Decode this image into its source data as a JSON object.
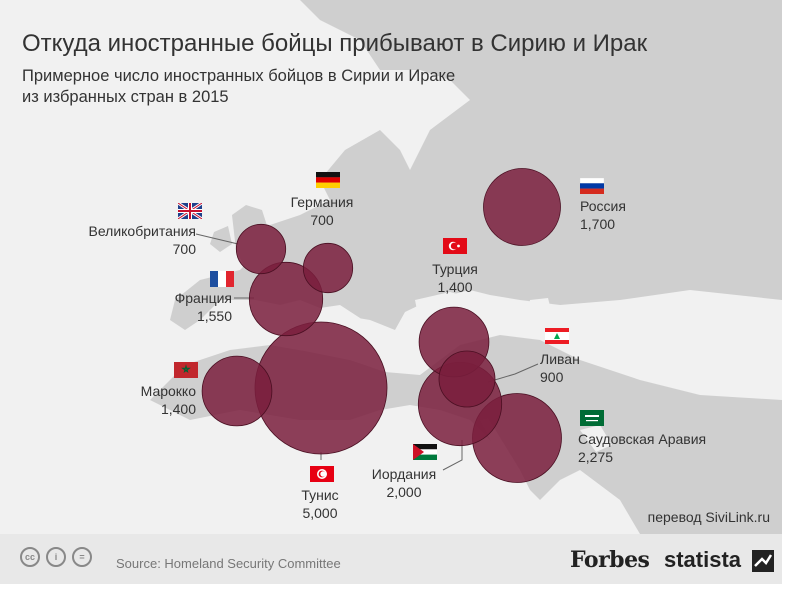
{
  "chart_data": {
    "type": "bubble-map",
    "title": "Откуда иностранные бойцы прибывают в Сирию и Ирак",
    "subtitle_lines": [
      "Примерное число иностранных бойцов в Сирии и Ираке",
      "из избранных стран в 2015"
    ],
    "points": [
      {
        "country": "Великобритания",
        "value_label": "700",
        "value": 700,
        "flag": "uk-flag-icon"
      },
      {
        "country": "Германия",
        "value_label": "700",
        "value": 700,
        "flag": "germany-flag-icon"
      },
      {
        "country": "Франция",
        "value_label": "1,550",
        "value": 1550,
        "flag": "france-flag-icon"
      },
      {
        "country": "Марокко",
        "value_label": "1,400",
        "value": 1400,
        "flag": "morocco-flag-icon"
      },
      {
        "country": "Тунис",
        "value_label": "5,000",
        "value": 5000,
        "flag": "tunisia-flag-icon"
      },
      {
        "country": "Турция",
        "value_label": "1,400",
        "value": 1400,
        "flag": "turkey-flag-icon"
      },
      {
        "country": "Ливан",
        "value_label": "900",
        "value": 900,
        "flag": "lebanon-flag-icon"
      },
      {
        "country": "Иордания",
        "value_label": "2,000",
        "value": 2000,
        "flag": "jordan-flag-icon"
      },
      {
        "country": "Саудовская Аравия",
        "value_label": "2,275",
        "value": 2275,
        "flag": "saudi-arabia-flag-icon"
      },
      {
        "country": "Россия",
        "value_label": "1,700",
        "value": 1700,
        "flag": "russia-flag-icon"
      }
    ],
    "bubble_color": "#7a1f3d",
    "map_land_color": "#cfcfcf",
    "map_water_color": "#f1f1f1"
  },
  "footer": {
    "translator": "перевод SiviLink.ru",
    "source": "Source: Homeland Security Committee",
    "brand_forbes": "Forbes",
    "brand_statista": "statista",
    "license_icons": [
      "cc-icon",
      "attribution-icon",
      "no-derivatives-icon"
    ]
  }
}
